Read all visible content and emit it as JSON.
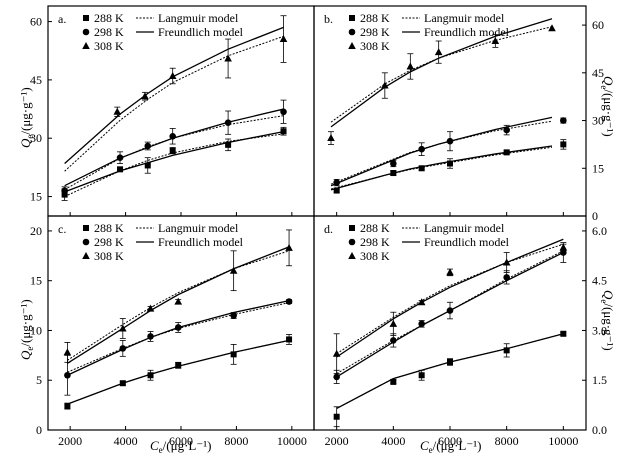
{
  "figure": {
    "xlabel": {
      "main": "C",
      "sub": "e",
      "unit": "/(μg·L⁻¹)"
    },
    "ylabel": {
      "main": "Q",
      "sub": "e",
      "unit": "/(μg·g⁻¹)"
    },
    "legend": {
      "temps": [
        "288 K",
        "298 K",
        "308 K"
      ],
      "models": [
        "Langmuir model",
        "Freundlich model"
      ]
    }
  },
  "chart_data": [
    {
      "panel": "a.",
      "type": "scatter",
      "xlim": [
        1200,
        10800
      ],
      "ylim": [
        10,
        64
      ],
      "yticks": [
        15,
        30,
        45,
        60
      ],
      "y_axis_side": "left",
      "show_temps": [
        "288 K",
        "298 K",
        "308 K"
      ],
      "series": [
        {
          "name": "288 K",
          "marker": "square",
          "x": [
            1800,
            3800,
            4800,
            5700,
            7700,
            9700
          ],
          "y": [
            15.5,
            22.0,
            23.0,
            26.8,
            28.3,
            31.8
          ],
          "err": [
            1.5,
            0.5,
            2.0,
            0.8,
            1.5,
            1.0
          ],
          "langmuir": [
            15.0,
            21.6,
            24.3,
            26.2,
            29.2,
            31.1
          ],
          "freundlich": [
            16.2,
            21.6,
            23.7,
            25.6,
            28.9,
            31.7
          ]
        },
        {
          "name": "298 K",
          "marker": "circle",
          "x": [
            1800,
            3800,
            4800,
            5700,
            7700,
            9700
          ],
          "y": [
            16.5,
            25.0,
            28.0,
            30.5,
            34.0,
            36.8
          ],
          "err": [
            1.0,
            1.5,
            1.0,
            2.0,
            3.0,
            3.0
          ],
          "langmuir": [
            16.8,
            24.8,
            27.8,
            30.0,
            33.5,
            35.8
          ],
          "freundlich": [
            17.8,
            24.9,
            27.6,
            30.0,
            34.1,
            37.5
          ]
        },
        {
          "name": "308 K",
          "marker": "triangle",
          "x": [
            3700,
            4700,
            5700,
            7700,
            9700
          ],
          "y": [
            36.8,
            40.8,
            46.0,
            50.5,
            55.5
          ],
          "err": [
            1.2,
            1.0,
            2.0,
            5.0,
            6.0
          ],
          "langmuir": [
            21.5,
            34.6,
            40.0,
            44.3,
            51.2,
            56.2
          ],
          "freundlich": [
            23.5,
            36.2,
            41.5,
            45.8,
            52.9,
            58.5
          ]
        }
      ],
      "curve_x": [
        1800,
        3800,
        4800,
        5700,
        7700,
        9700
      ]
    },
    {
      "panel": "b.",
      "type": "scatter",
      "xlim": [
        1200,
        10800
      ],
      "ylim": [
        0,
        66
      ],
      "yticks": [
        0,
        15,
        30,
        45,
        60
      ],
      "y_axis_side": "right",
      "show_temps": [
        "288 K",
        "298 K",
        "308 K"
      ],
      "series": [
        {
          "name": "288 K",
          "marker": "square",
          "x": [
            2000,
            4000,
            5000,
            6000,
            8000,
            10000
          ],
          "y": [
            8.0,
            13.5,
            15.0,
            16.5,
            20.0,
            22.5
          ],
          "err": [
            0.5,
            0.8,
            0.5,
            1.5,
            0.5,
            1.5
          ],
          "langmuir": [
            8.5,
            12.8,
            14.6,
            16.2,
            19.2,
            21.6
          ],
          "freundlich": [
            8.2,
            12.8,
            14.8,
            16.5,
            19.5,
            22.0
          ]
        },
        {
          "name": "298 K",
          "marker": "circle",
          "x": [
            2000,
            4000,
            5000,
            6000,
            8000,
            10000
          ],
          "y": [
            10.5,
            16.5,
            21.0,
            23.5,
            27.0,
            30.0
          ],
          "err": [
            1.0,
            1.0,
            2.0,
            3.0,
            1.5,
            0.8
          ],
          "langmuir": [
            10.0,
            16.8,
            20.0,
            22.6,
            26.8,
            29.8
          ],
          "freundlich": [
            9.5,
            16.5,
            19.8,
            22.6,
            27.2,
            31.0
          ]
        },
        {
          "name": "308 K",
          "marker": "triangle",
          "x": [
            1800,
            3700,
            4600,
            5600,
            7600,
            9600
          ],
          "y": [
            24.5,
            41.0,
            47.0,
            51.5,
            55.0,
            59.0
          ],
          "err": [
            2.0,
            4.0,
            4.0,
            3.5,
            2.0,
            0
          ],
          "langmuir": [
            29.5,
            41.5,
            45.8,
            49.6,
            55.2,
            59.5
          ],
          "freundlich": [
            28.0,
            40.5,
            45.3,
            49.6,
            56.5,
            62.0
          ]
        }
      ],
      "curve_x": [
        1800,
        3700,
        4600,
        5600,
        7600,
        9600
      ]
    },
    {
      "panel": "c.",
      "type": "scatter",
      "xlim": [
        1200,
        10800
      ],
      "ylim": [
        0,
        21.5
      ],
      "yticks": [
        0,
        5,
        10,
        15,
        20
      ],
      "xticks": [
        2000,
        4000,
        6000,
        8000,
        10000
      ],
      "y_axis_side": "left",
      "show_temps": [
        "288 K",
        "298 K",
        "308 K"
      ],
      "series": [
        {
          "name": "288 K",
          "marker": "square",
          "x": [
            1900,
            3900,
            4900,
            5900,
            7900,
            9900
          ],
          "y": [
            2.4,
            4.7,
            5.5,
            6.5,
            7.6,
            9.1
          ],
          "err": [
            0.3,
            0.2,
            0.5,
            0.3,
            1.0,
            0.5
          ],
          "langmuir": [
            2.6,
            4.7,
            5.6,
            6.4,
            7.8,
            9.0
          ],
          "freundlich": [
            2.6,
            4.7,
            5.6,
            6.4,
            7.8,
            9.0
          ]
        },
        {
          "name": "298 K",
          "marker": "circle",
          "x": [
            1900,
            3900,
            4900,
            5900,
            7900,
            9900
          ],
          "y": [
            5.5,
            8.2,
            9.4,
            10.3,
            11.5,
            12.9
          ],
          "err": [
            2.0,
            0.8,
            0.5,
            0.5,
            0.3,
            0.2
          ],
          "langmuir": [
            5.8,
            8.2,
            9.3,
            10.2,
            11.6,
            12.8
          ],
          "freundlich": [
            5.5,
            8.1,
            9.3,
            10.3,
            11.8,
            13.0
          ]
        },
        {
          "name": "308 K",
          "marker": "triangle",
          "x": [
            1900,
            3900,
            4900,
            5900,
            7900,
            9900
          ],
          "y": [
            7.8,
            10.2,
            12.2,
            12.9,
            16.0,
            18.3
          ],
          "err": [
            1.0,
            1.0,
            0.2,
            0.2,
            2.0,
            1.8
          ],
          "langmuir": [
            7.0,
            10.6,
            12.3,
            13.8,
            16.2,
            18.0
          ],
          "freundlich": [
            6.7,
            10.2,
            12.0,
            13.6,
            16.2,
            18.4
          ]
        }
      ],
      "curve_x": [
        1900,
        3900,
        4900,
        5900,
        7900,
        9900
      ]
    },
    {
      "panel": "d.",
      "type": "scatter",
      "xlim": [
        1200,
        10800
      ],
      "ylim": [
        0,
        6.45
      ],
      "yticks": [
        0,
        1.5,
        3.0,
        4.5,
        6.0
      ],
      "xticks": [
        2000,
        4000,
        6000,
        8000,
        10000
      ],
      "y_axis_side": "right",
      "show_temps": [
        "288 K",
        "298 K",
        "308 K"
      ],
      "series": [
        {
          "name": "288 K",
          "marker": "square",
          "x": [
            2000,
            4000,
            5000,
            6000,
            8000,
            10000
          ],
          "y": [
            0.4,
            1.45,
            1.65,
            2.05,
            2.4,
            2.9
          ],
          "err": [
            0.3,
            0.05,
            0.15,
            0.1,
            0.2,
            0.05
          ],
          "langmuir": [
            0.65,
            1.55,
            1.8,
            2.05,
            2.45,
            2.9
          ],
          "freundlich": [
            0.65,
            1.55,
            1.8,
            2.05,
            2.45,
            2.9
          ]
        },
        {
          "name": "298 K",
          "marker": "circle",
          "x": [
            2000,
            4000,
            5000,
            6000,
            8000,
            10000
          ],
          "y": [
            1.6,
            2.7,
            3.2,
            3.6,
            4.6,
            5.35
          ],
          "err": [
            0.2,
            0.2,
            0.1,
            0.25,
            0.2,
            0.3
          ],
          "langmuir": [
            1.7,
            2.7,
            3.15,
            3.6,
            4.55,
            5.4
          ],
          "freundlich": [
            1.6,
            2.65,
            3.15,
            3.6,
            4.5,
            5.35
          ]
        },
        {
          "name": "308 K",
          "marker": "triangle",
          "x": [
            2000,
            4000,
            5000,
            6000,
            8000,
            10000
          ],
          "y": [
            2.3,
            3.2,
            3.85,
            4.75,
            5.05,
            5.5
          ],
          "err": [
            0.6,
            0.35,
            0.05,
            0.1,
            0.3,
            0.1
          ],
          "langmuir": [
            2.3,
            3.4,
            3.9,
            4.35,
            5.05,
            5.6
          ],
          "freundlich": [
            2.2,
            3.35,
            3.85,
            4.3,
            5.05,
            5.75
          ]
        }
      ],
      "curve_x": [
        2000,
        4000,
        5000,
        6000,
        8000,
        10000
      ]
    }
  ]
}
